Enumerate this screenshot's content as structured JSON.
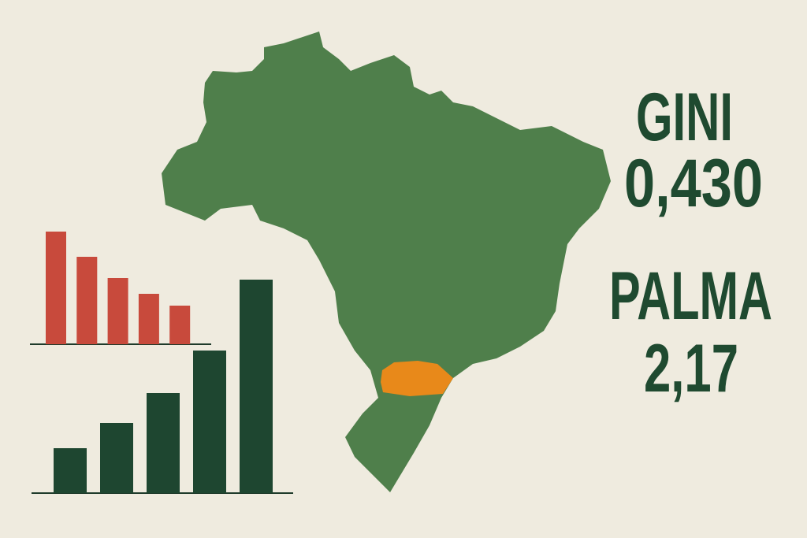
{
  "texts": {
    "gini_label": "GINI",
    "gini_value": "0,430",
    "palma_label": "PALMA",
    "palma_value": "2,17"
  },
  "chart_data": [
    {
      "type": "bar",
      "categories": [
        null,
        null,
        null,
        null,
        null
      ],
      "values": [
        143,
        111,
        84,
        64,
        49
      ],
      "color": "#c84a3c",
      "ylim": [
        0,
        150
      ]
    },
    {
      "type": "bar",
      "categories": [
        null,
        null,
        null,
        null,
        null
      ],
      "values": [
        57,
        89,
        127,
        181,
        271
      ],
      "color": "#1e4630",
      "ylim": [
        0,
        280
      ]
    }
  ]
}
